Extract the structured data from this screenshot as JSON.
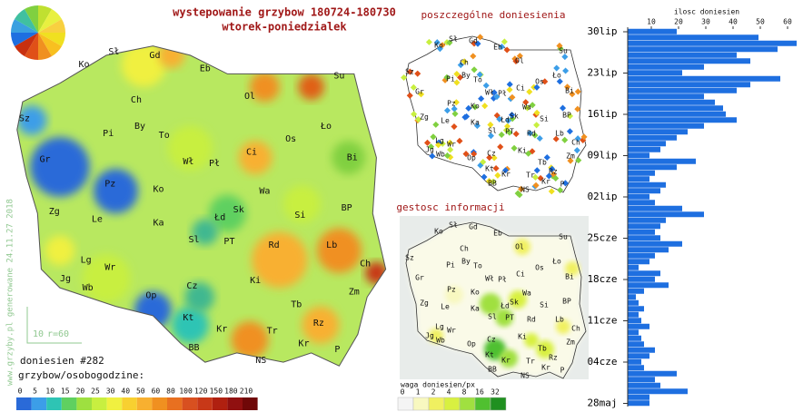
{
  "header": {
    "title": "wystepowanie grzybow 180724-180730",
    "subtitle": "wtorek-poniedzialek"
  },
  "main_map": {
    "labels": [
      "Sł",
      "Gd",
      "Eb",
      "Su",
      "Ko",
      "Ch",
      "Ol",
      "Sz",
      "Pi",
      "By",
      "To",
      "Ci",
      "Os",
      "Ło",
      "Gr",
      "Wł",
      "Pł",
      "Bi",
      "Pz",
      "Ko",
      "Wa",
      "Zg",
      "Le",
      "Ka",
      "Łd",
      "Sk",
      "Si",
      "BP",
      "Sl",
      "PT",
      "Rd",
      "Lb",
      "Lg",
      "Wr",
      "Ch",
      "Jg",
      "Wb",
      "Ki",
      "Op",
      "Cz",
      "Zm",
      "Tb",
      "Kt",
      "Kr",
      "Rz",
      "Tr",
      "BB",
      "Kr",
      "P",
      "NS"
    ],
    "count_text": "doniesien #282",
    "scale_title": "grzybow/osobogodzine:",
    "scale": {
      "values": [
        0,
        5,
        10,
        15,
        20,
        25,
        30,
        40,
        50,
        60,
        80,
        100,
        120,
        150,
        180,
        210
      ],
      "colors": [
        "#2a6ad8",
        "#3c9ee8",
        "#2ec4b4",
        "#5fd060",
        "#9ee040",
        "#c8ef40",
        "#f0f040",
        "#f8d030",
        "#f8b030",
        "#f09020",
        "#e87020",
        "#d85020",
        "#c83818",
        "#b02010",
        "#901010",
        "#700808"
      ]
    },
    "radius_note": [
      "10",
      "r=60"
    ],
    "credit": "www.grzyby.pl generowane 24.11.27 2018"
  },
  "reports_map": {
    "title": "poszczególne doniesienia",
    "labels": [
      "Sł",
      "Gd",
      "Eb",
      "Su",
      "Ko",
      "Ch",
      "Ol",
      "Sz",
      "Pi",
      "By",
      "To",
      "Ci",
      "Os",
      "Ło",
      "Gr",
      "Wł",
      "Pł",
      "Bi",
      "Pz",
      "Ko",
      "Wa",
      "Zg",
      "Le",
      "Ka",
      "Łd",
      "Sk",
      "Si",
      "BP",
      "Sl",
      "PT",
      "Rd",
      "Lb",
      "Lg",
      "Wr",
      "Ch",
      "Jg",
      "Wb",
      "Ki",
      "Op",
      "Cz",
      "Zm",
      "Tb",
      "Kt",
      "Kr",
      "Rz",
      "Tr",
      "BB",
      "Kr",
      "P",
      "NS"
    ]
  },
  "density_map": {
    "title": "gestosc informacji",
    "labels": [
      "Sł",
      "Gd",
      "Eb",
      "Su",
      "Ko",
      "Ch",
      "Ol",
      "Sz",
      "Pi",
      "By",
      "To",
      "Ci",
      "Os",
      "Ło",
      "Gr",
      "Wł",
      "Pł",
      "Bi",
      "Pz",
      "Ko",
      "Wa",
      "Zg",
      "Le",
      "Ka",
      "Łd",
      "Sk",
      "Si",
      "BP",
      "Sl",
      "PT",
      "Rd",
      "Lb",
      "Lg",
      "Wr",
      "Ch",
      "Jg",
      "Wb",
      "Ki",
      "Op",
      "Cz",
      "Zm",
      "Tb",
      "Kt",
      "Kr",
      "Rz",
      "Tr",
      "BB",
      "Kr",
      "P",
      "NS"
    ],
    "scale_title": "waga doniesien/px",
    "scale": {
      "values": [
        0,
        1,
        2,
        4,
        8,
        16,
        32
      ],
      "colors": [
        "#f4f4f4",
        "#f8f8c0",
        "#f0f060",
        "#d8f040",
        "#a0e040",
        "#50c030",
        "#209020"
      ]
    }
  },
  "chart_data": {
    "type": "bar",
    "orientation": "horizontal",
    "x_label": "ilosc doniesien",
    "categories": [
      "30lip",
      null,
      null,
      null,
      null,
      null,
      null,
      "23lip",
      null,
      null,
      null,
      null,
      null,
      null,
      "16lip",
      null,
      null,
      null,
      null,
      null,
      null,
      "09lip",
      null,
      null,
      null,
      null,
      null,
      null,
      "02lip",
      null,
      null,
      null,
      null,
      null,
      null,
      "25cze",
      null,
      null,
      null,
      null,
      null,
      null,
      "18cze",
      null,
      null,
      null,
      null,
      null,
      null,
      "11cze",
      null,
      null,
      null,
      null,
      null,
      null,
      "04cze",
      null,
      null,
      null,
      null,
      null,
      null,
      "28maj"
    ],
    "values": [
      18,
      48,
      62,
      55,
      40,
      45,
      28,
      20,
      56,
      45,
      40,
      28,
      32,
      35,
      36,
      40,
      28,
      22,
      18,
      14,
      12,
      8,
      25,
      18,
      10,
      8,
      14,
      12,
      8,
      10,
      20,
      28,
      14,
      12,
      10,
      12,
      20,
      15,
      10,
      8,
      4,
      12,
      10,
      15,
      6,
      3,
      4,
      6,
      4,
      5,
      8,
      4,
      5,
      6,
      10,
      8,
      5,
      6,
      18,
      10,
      12,
      22,
      8,
      8
    ],
    "color": "#1e6fe0",
    "xlim": [
      0,
      64
    ],
    "xticks": [
      10,
      20,
      30,
      40,
      50,
      60
    ]
  }
}
